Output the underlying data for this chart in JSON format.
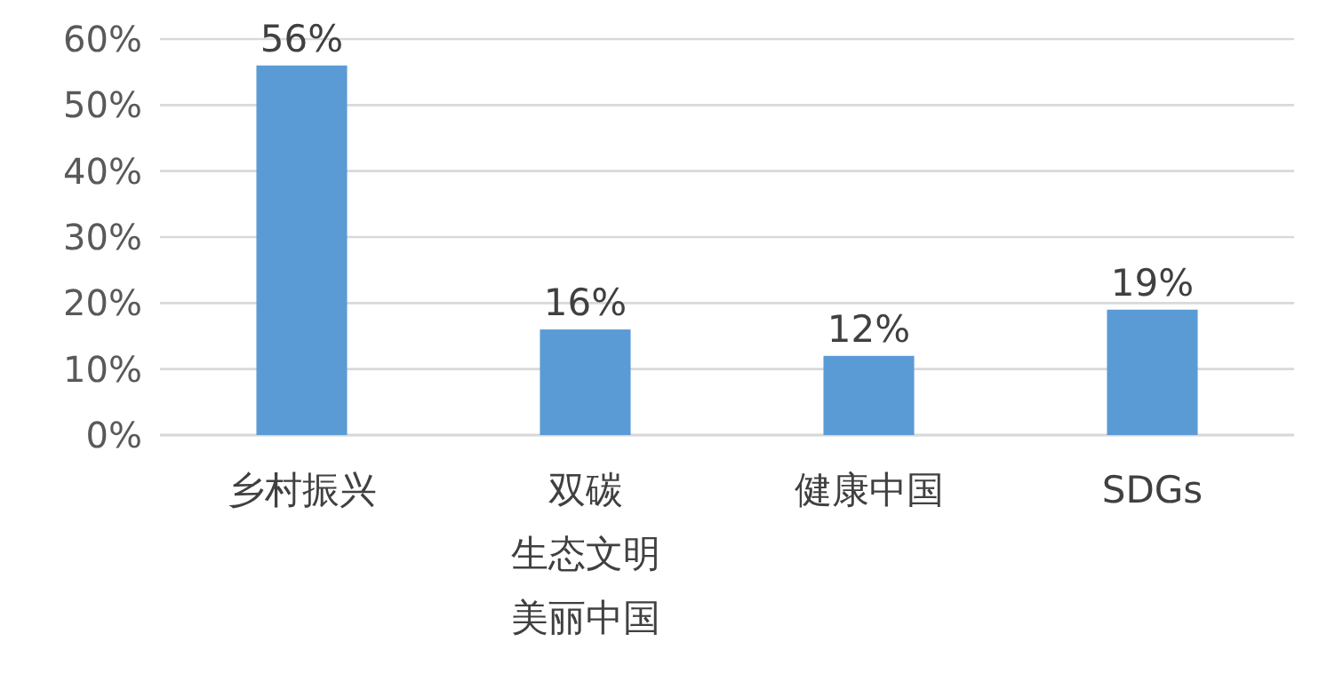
{
  "chart_data": {
    "type": "bar",
    "categories": [
      "乡村振兴",
      "双碳生态文明美丽中国",
      "健康中国",
      "SDGs"
    ],
    "values": [
      56,
      16,
      12,
      19
    ],
    "color": "#5b9bd5",
    "ylim": [
      0,
      60
    ],
    "yticks": [
      {
        "value": 0,
        "label": "0%"
      },
      {
        "value": 10,
        "label": "10%"
      },
      {
        "value": 20,
        "label": "20%"
      },
      {
        "value": 30,
        "label": "30%"
      },
      {
        "value": 40,
        "label": "40%"
      },
      {
        "value": 50,
        "label": "50%"
      },
      {
        "value": 60,
        "label": "60%"
      }
    ],
    "value_labels": [
      "56%",
      "16%",
      "12%",
      "19%"
    ],
    "grid": "y"
  }
}
